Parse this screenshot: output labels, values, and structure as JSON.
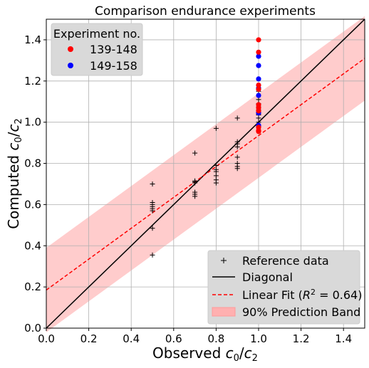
{
  "chart_data": {
    "type": "scatter",
    "title": "Comparison endurance experiments",
    "xlabel_text": "Observed ",
    "ylabel_text": "Computed ",
    "axis_math": {
      "var": "c",
      "num_sub": "0",
      "sep": "/",
      "den_sub": "2"
    },
    "xlim": [
      0.0,
      1.5
    ],
    "ylim": [
      0.0,
      1.5
    ],
    "xticks": [
      "0.0",
      "0.2",
      "0.4",
      "0.6",
      "0.8",
      "1.0",
      "1.2",
      "1.4"
    ],
    "yticks": [
      "0.0",
      "0.2",
      "0.4",
      "0.6",
      "0.8",
      "1.0",
      "1.2",
      "1.4"
    ],
    "grid": true,
    "reference": {
      "name": "Reference data",
      "marker": "+",
      "color": "#000000",
      "points": [
        [
          0.5,
          0.7
        ],
        [
          0.5,
          0.61
        ],
        [
          0.5,
          0.6
        ],
        [
          0.5,
          0.59
        ],
        [
          0.5,
          0.58
        ],
        [
          0.5,
          0.57
        ],
        [
          0.5,
          0.485
        ],
        [
          0.5,
          0.355
        ],
        [
          0.7,
          0.85
        ],
        [
          0.7,
          0.715
        ],
        [
          0.7,
          0.71
        ],
        [
          0.7,
          0.705
        ],
        [
          0.7,
          0.66
        ],
        [
          0.7,
          0.65
        ],
        [
          0.7,
          0.64
        ],
        [
          0.8,
          0.97
        ],
        [
          0.8,
          0.79
        ],
        [
          0.8,
          0.77
        ],
        [
          0.8,
          0.76
        ],
        [
          0.8,
          0.74
        ],
        [
          0.8,
          0.72
        ],
        [
          0.8,
          0.705
        ],
        [
          0.9,
          1.02
        ],
        [
          0.9,
          0.905
        ],
        [
          0.9,
          0.895
        ],
        [
          0.9,
          0.88
        ],
        [
          0.9,
          0.83
        ],
        [
          0.9,
          0.8
        ],
        [
          0.9,
          0.785
        ],
        [
          0.9,
          0.775
        ],
        [
          1.0,
          1.15
        ],
        [
          1.0,
          1.13
        ],
        [
          1.0,
          1.11
        ],
        [
          1.0,
          1.09
        ],
        [
          1.0,
          1.075
        ],
        [
          1.0,
          1.06
        ],
        [
          1.0,
          1.05
        ],
        [
          1.0,
          1.04
        ],
        [
          1.0,
          1.035
        ],
        [
          1.0,
          1.02
        ],
        [
          1.0,
          1.0
        ],
        [
          1.0,
          0.985
        ]
      ]
    },
    "experiment_legend_title": "Experiment no.",
    "experiments": [
      {
        "name": "139-148",
        "color": "#ff0000",
        "x": 1.0,
        "y": [
          1.4,
          1.34,
          1.18,
          1.16,
          1.085,
          1.07,
          1.055,
          0.975,
          0.96,
          0.955
        ]
      },
      {
        "name": "149-158",
        "color": "#0000ff",
        "x": 1.0,
        "y": [
          1.32,
          1.275,
          1.21,
          1.165,
          1.13,
          1.045,
          0.985,
          0.98
        ]
      }
    ],
    "diagonal": {
      "name": "Diagonal",
      "color": "#000000",
      "x": [
        0.0,
        1.5
      ],
      "y": [
        0.0,
        1.5
      ]
    },
    "fit": {
      "name_text": "Linear Fit (",
      "r2_var": "R",
      "r2_exp": "2",
      "r2_value": " = 0.64)",
      "color": "#ff0000",
      "style": "dashed",
      "intercept": 0.185,
      "slope": 0.75
    },
    "band": {
      "name": "90% Prediction Band",
      "color": "#ffb0b0",
      "halfwidth": 0.205
    },
    "legend_placement": [
      "upper-left",
      "lower-right"
    ]
  }
}
